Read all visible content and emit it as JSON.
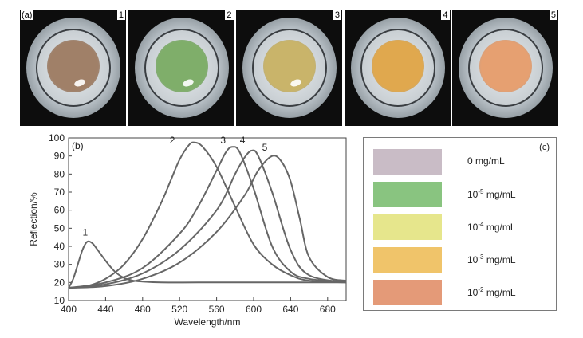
{
  "panel_a": {
    "label": "(a)",
    "photos": [
      {
        "label": "1",
        "well_color": "#a08068",
        "glint": true
      },
      {
        "label": "2",
        "well_color": "#7fae6a",
        "glint": true
      },
      {
        "label": "3",
        "well_color": "#c9b46a",
        "glint": true
      },
      {
        "label": "4",
        "well_color": "#e0a84e",
        "glint": false
      },
      {
        "label": "5",
        "well_color": "#e6a071",
        "glint": false
      }
    ]
  },
  "chart_data": {
    "type": "line",
    "panel_label": "(b)",
    "xlabel": "Wavelength/nm",
    "ylabel": "Reflection/%",
    "xlim": [
      400,
      700
    ],
    "ylim": [
      10,
      100
    ],
    "xticks": [
      "400",
      "440",
      "480",
      "520",
      "560",
      "600",
      "640",
      "680"
    ],
    "yticks": [
      "10",
      "20",
      "30",
      "40",
      "50",
      "60",
      "70",
      "80",
      "90",
      "100"
    ],
    "line_color": "#666666",
    "series": [
      {
        "name": "1",
        "peak": 422,
        "peak_value": 42.5,
        "width_left": 12,
        "width_right": 16,
        "label_x": 418,
        "label_y": 46,
        "x": [
          400,
          405,
          410,
          415,
          420,
          425,
          430,
          440,
          450,
          460,
          470,
          480,
          500,
          540,
          600,
          700
        ],
        "y": [
          17,
          22,
          30,
          38,
          42.5,
          42,
          39,
          32,
          26,
          22.5,
          21,
          20.5,
          20,
          20,
          20,
          20
        ]
      },
      {
        "name": "2",
        "peak": 536,
        "peak_value": 97.5,
        "label_x": 512,
        "label_y": 97,
        "x": [
          400,
          420,
          440,
          460,
          480,
          500,
          510,
          520,
          530,
          536,
          545,
          560,
          580,
          600,
          620,
          640,
          660,
          700
        ],
        "y": [
          17,
          18,
          22,
          30,
          44,
          64,
          76,
          88,
          96,
          97.5,
          95,
          84,
          62,
          41,
          30,
          24,
          21,
          20
        ]
      },
      {
        "name": "3",
        "peak": 577,
        "peak_value": 95,
        "label_x": 567,
        "label_y": 97,
        "x": [
          400,
          440,
          480,
          520,
          540,
          560,
          570,
          577,
          585,
          600,
          620,
          640,
          660,
          700
        ],
        "y": [
          17,
          20,
          28,
          47,
          62,
          82,
          92,
          95,
          92,
          72,
          40,
          26,
          22,
          20
        ]
      },
      {
        "name": "4",
        "peak": 598,
        "peak_value": 93,
        "label_x": 588,
        "label_y": 97,
        "x": [
          400,
          440,
          480,
          520,
          560,
          580,
          590,
          598,
          605,
          620,
          640,
          660,
          700
        ],
        "y": [
          17,
          19,
          25,
          38,
          60,
          80,
          89,
          93,
          90,
          70,
          38,
          24,
          20
        ]
      },
      {
        "name": "5",
        "peak": 620,
        "peak_value": 90,
        "label_x": 612,
        "label_y": 93,
        "x": [
          400,
          440,
          480,
          520,
          560,
          590,
          605,
          620,
          630,
          640,
          650,
          660,
          680,
          700
        ],
        "y": [
          17,
          18,
          22,
          31,
          48,
          68,
          82,
          90,
          87,
          76,
          55,
          34,
          23,
          21
        ]
      }
    ]
  },
  "panel_c": {
    "label": "(c)",
    "swatches": [
      {
        "color": "#c9bcc6",
        "text": "0 mg/mL",
        "exponent": ""
      },
      {
        "color": "#89c480",
        "text": "10",
        "exponent": "-5",
        "unit": " mg/mL"
      },
      {
        "color": "#e6e68c",
        "text": "10",
        "exponent": "-4",
        "unit": " mg/mL"
      },
      {
        "color": "#f0c46a",
        "text": "10",
        "exponent": "-3",
        "unit": " mg/mL"
      },
      {
        "color": "#e49a78",
        "text": "10",
        "exponent": "-2",
        "unit": " mg/mL"
      }
    ]
  }
}
